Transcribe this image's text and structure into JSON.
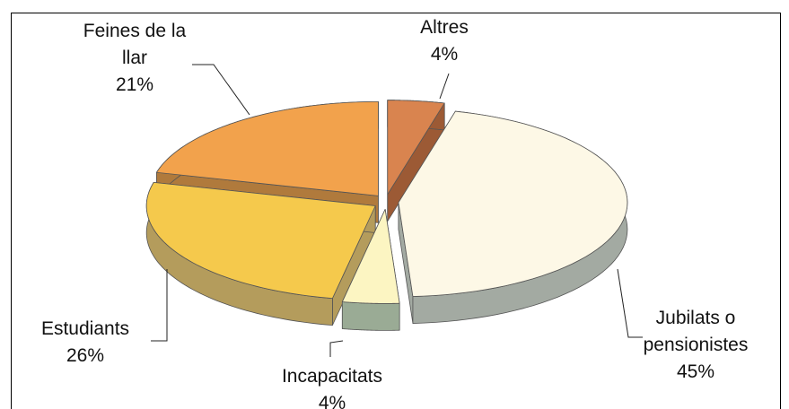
{
  "chart_data": {
    "type": "pie",
    "categories": [
      "Altres",
      "Jubilats o pensionistes",
      "Incapacitats",
      "Estudiants",
      "Feines de la llar"
    ],
    "values": [
      4,
      45,
      4,
      26,
      21
    ],
    "value_labels": [
      "4%",
      "45%",
      "4%",
      "26%",
      "21%"
    ],
    "colors": [
      "#d9844f",
      "#fdf8e6",
      "#fcf5c2",
      "#f5c94c",
      "#f2a24c"
    ],
    "side_colors": [
      "#9c5a35",
      "#a3aaa2",
      "#9aab95",
      "#b49c5c",
      "#b07a3c"
    ]
  }
}
